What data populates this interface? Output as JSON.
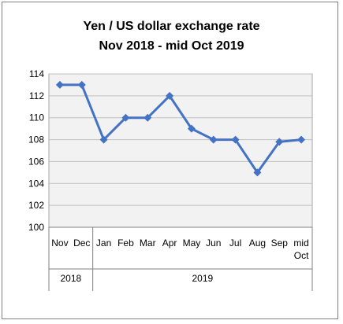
{
  "chart_data": {
    "type": "line",
    "title": "Yen / US dollar  exchange rate",
    "subtitle": "Nov 2018 -  mid Oct 2019",
    "categories": [
      "Nov",
      "Dec",
      "Jan",
      "Feb",
      "Mar",
      "Apr",
      "May",
      "Jun",
      "Jul",
      "Aug",
      "Sep",
      "mid Oct"
    ],
    "year_groups": [
      {
        "label": "2018",
        "count": 2
      },
      {
        "label": "2019",
        "count": 10
      }
    ],
    "series": [
      {
        "values": [
          113,
          113,
          108,
          110,
          110,
          112,
          109,
          108,
          108,
          105,
          107.8,
          108
        ]
      }
    ],
    "ylim": [
      100,
      114
    ],
    "yticks": [
      100,
      102,
      104,
      106,
      108,
      110,
      112,
      114
    ],
    "grid": true,
    "colors": {
      "line": "#4472c4",
      "plot_bg": "#f2f2f2",
      "grid": "#bfbfbf"
    }
  }
}
